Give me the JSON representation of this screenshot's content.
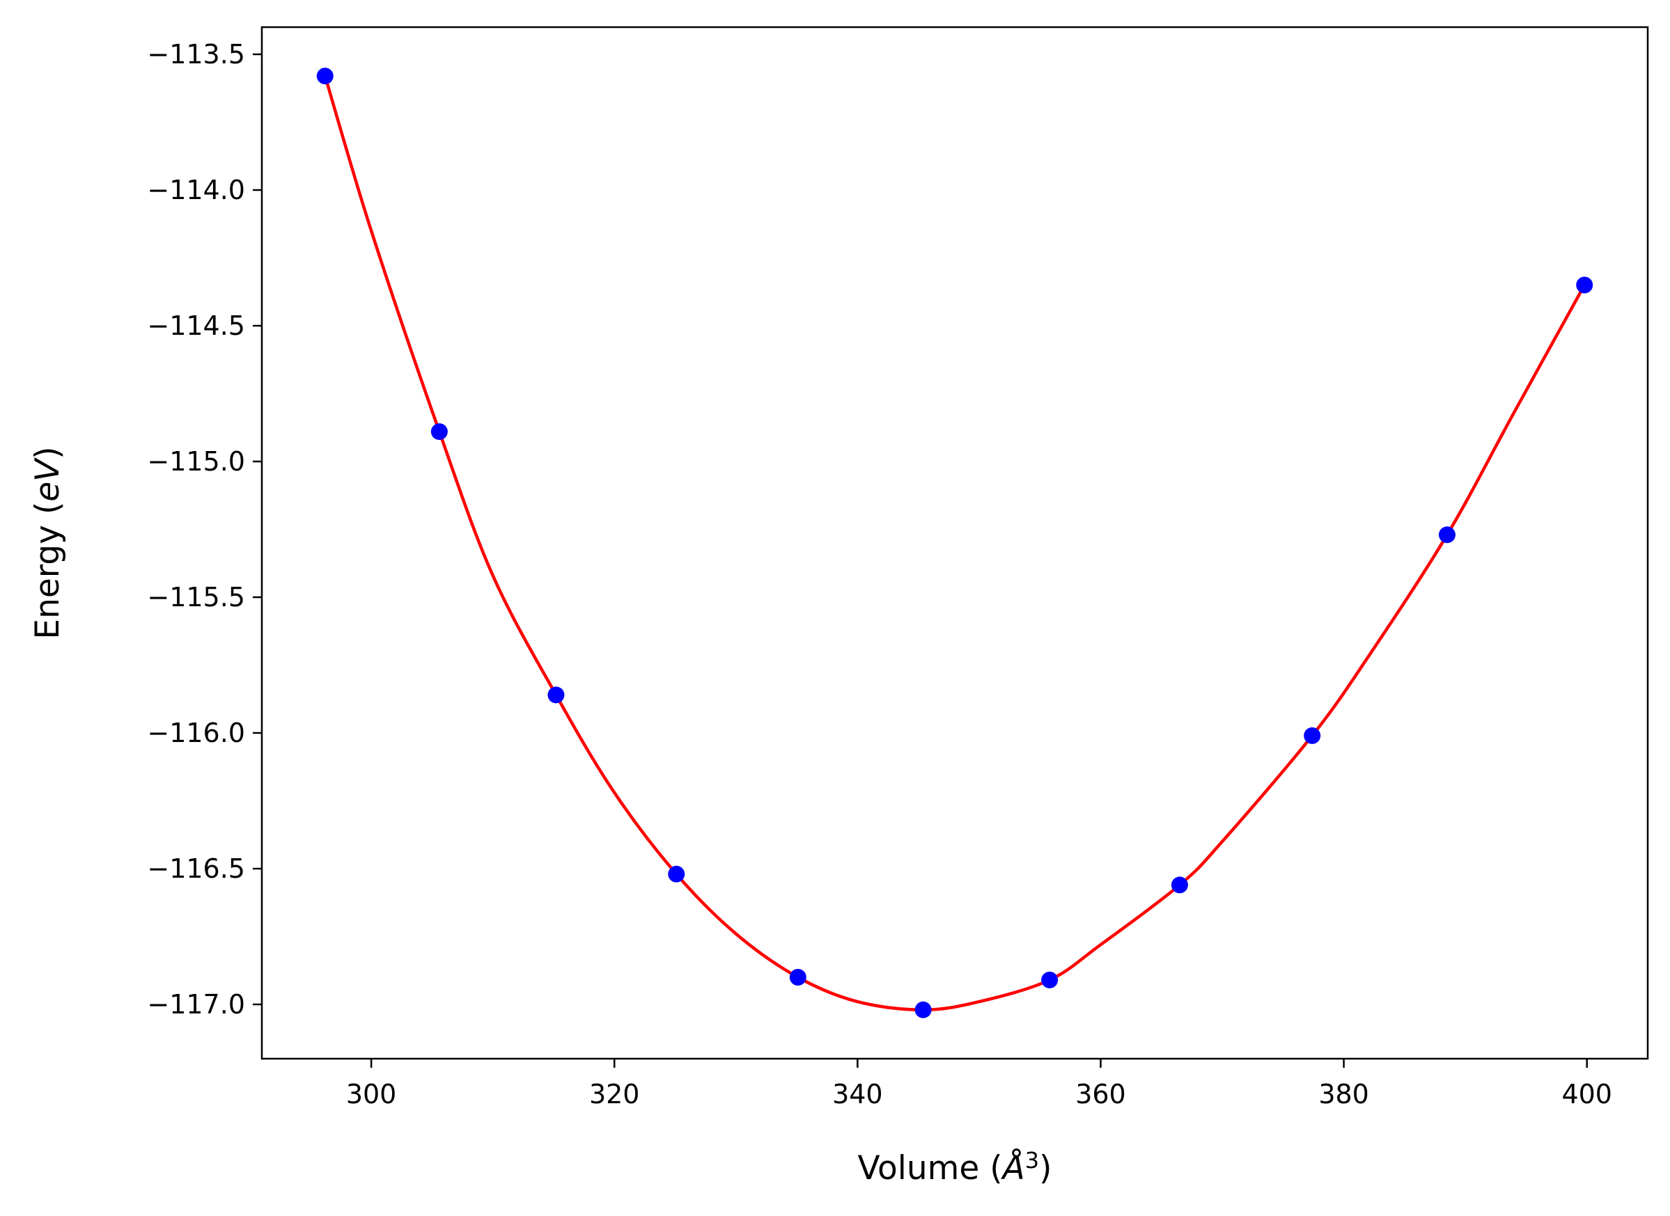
{
  "chart_data": {
    "type": "scatter",
    "title": "",
    "xlabel": "Volume",
    "ylabel": "Energy",
    "xlabel_unit": "Å",
    "xlabel_unit_power": "3",
    "ylabel_unit": "eV",
    "xlim": [
      291,
      405
    ],
    "ylim": [
      -117.2,
      -113.4
    ],
    "grid": false,
    "x_ticks": [
      300,
      320,
      340,
      360,
      380,
      400
    ],
    "x_tick_labels": [
      "300",
      "320",
      "340",
      "360",
      "380",
      "400"
    ],
    "y_ticks": [
      -113.5,
      -114.0,
      -114.5,
      -115.0,
      -115.5,
      -116.0,
      -116.5,
      -117.0
    ],
    "y_tick_labels": [
      "−113.5",
      "−114.0",
      "−114.5",
      "−115.0",
      "−115.5",
      "−116.0",
      "−116.5",
      "−117.0"
    ],
    "series": [
      {
        "kind": "points",
        "color": "#0000ff",
        "x": [
          296.2,
          305.6,
          315.2,
          325.1,
          335.1,
          345.4,
          355.8,
          366.5,
          377.4,
          388.5,
          399.8
        ],
        "y": [
          -113.58,
          -114.89,
          -115.86,
          -116.52,
          -116.9,
          -117.02,
          -116.91,
          -116.56,
          -116.01,
          -115.27,
          -114.35
        ]
      },
      {
        "kind": "fit-curve",
        "color": "#ff0000",
        "x": [
          296.2,
          300,
          305.6,
          310,
          315.2,
          320,
          325.1,
          330,
          335.1,
          340,
          345.4,
          350,
          355.8,
          360,
          366.5,
          370,
          377.4,
          382,
          388.5,
          394,
          399.8
        ],
        "y": [
          -113.58,
          -114.15,
          -114.89,
          -115.42,
          -115.86,
          -116.22,
          -116.52,
          -116.74,
          -116.9,
          -116.99,
          -117.02,
          -116.99,
          -116.91,
          -116.78,
          -116.56,
          -116.4,
          -116.01,
          -115.72,
          -115.27,
          -114.82,
          -114.35
        ]
      }
    ]
  }
}
